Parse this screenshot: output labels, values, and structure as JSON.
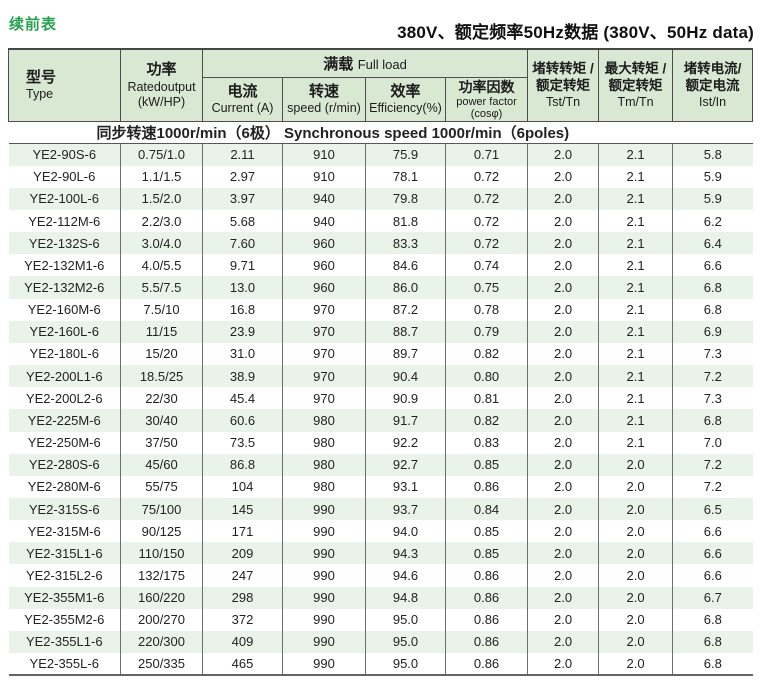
{
  "page": {
    "continued_label": "续前表",
    "title_right": "380V、额定频率50Hz数据 (380V、50Hz data)"
  },
  "table": {
    "section_header": "同步转速1000r/min（6极） Synchronous speed 1000r/min（6poles)",
    "columns": {
      "type": {
        "zh": "型号",
        "en": "Type"
      },
      "power": {
        "zh": "功率",
        "en": "Ratedoutput",
        "unit": "(kW/HP)"
      },
      "full_load": {
        "zh": "满载",
        "en": "Full load"
      },
      "current": {
        "zh": "电流",
        "en": "Current (A)"
      },
      "speed": {
        "zh": "转速",
        "en": "speed (r/min)"
      },
      "efficiency": {
        "zh": "效率",
        "en": "Efficiency(%)"
      },
      "power_factor": {
        "zh": "功率因数",
        "en": "power factor",
        "unit": "(cosφ)"
      },
      "tst_tn": {
        "zh1": "堵转转矩 /",
        "zh2": "额定转矩",
        "en": "Tst/Tn"
      },
      "tm_tn": {
        "zh1": "最大转矩 /",
        "zh2": "额定转矩",
        "en": "Tm/Tn"
      },
      "ist_in": {
        "zh1": "堵转电流/",
        "zh2": "额定电流",
        "en": "Ist/In"
      }
    },
    "column_keys": [
      "model",
      "rated-output",
      "current",
      "speed",
      "efficiency",
      "power-factor",
      "tst-tn",
      "tm-tn",
      "ist-in"
    ],
    "rows": [
      [
        "YE2-90S-6",
        "0.75/1.0",
        "2.11",
        "910",
        "75.9",
        "0.71",
        "2.0",
        "2.1",
        "5.8"
      ],
      [
        "YE2-90L-6",
        "1.1/1.5",
        "2.97",
        "910",
        "78.1",
        "0.72",
        "2.0",
        "2.1",
        "5.9"
      ],
      [
        "YE2-100L-6",
        "1.5/2.0",
        "3.97",
        "940",
        "79.8",
        "0.72",
        "2.0",
        "2.1",
        "5.9"
      ],
      [
        "YE2-112M-6",
        "2.2/3.0",
        "5.68",
        "940",
        "81.8",
        "0.72",
        "2.0",
        "2.1",
        "6.2"
      ],
      [
        "YE2-132S-6",
        "3.0/4.0",
        "7.60",
        "960",
        "83.3",
        "0.72",
        "2.0",
        "2.1",
        "6.4"
      ],
      [
        "YE2-132M1-6",
        "4.0/5.5",
        "9.71",
        "960",
        "84.6",
        "0.74",
        "2.0",
        "2.1",
        "6.6"
      ],
      [
        "YE2-132M2-6",
        "5.5/7.5",
        "13.0",
        "960",
        "86.0",
        "0.75",
        "2.0",
        "2.1",
        "6.8"
      ],
      [
        "YE2-160M-6",
        "7.5/10",
        "16.8",
        "970",
        "87.2",
        "0.78",
        "2.0",
        "2.1",
        "6.8"
      ],
      [
        "YE2-160L-6",
        "11/15",
        "23.9",
        "970",
        "88.7",
        "0.79",
        "2.0",
        "2.1",
        "6.9"
      ],
      [
        "YE2-180L-6",
        "15/20",
        "31.0",
        "970",
        "89.7",
        "0.82",
        "2.0",
        "2.1",
        "7.3"
      ],
      [
        "YE2-200L1-6",
        "18.5/25",
        "38.9",
        "970",
        "90.4",
        "0.80",
        "2.0",
        "2.1",
        "7.2"
      ],
      [
        "YE2-200L2-6",
        "22/30",
        "45.4",
        "970",
        "90.9",
        "0.81",
        "2.0",
        "2.1",
        "7.3"
      ],
      [
        "YE2-225M-6",
        "30/40",
        "60.6",
        "980",
        "91.7",
        "0.82",
        "2.0",
        "2.1",
        "6.8"
      ],
      [
        "YE2-250M-6",
        "37/50",
        "73.5",
        "980",
        "92.2",
        "0.83",
        "2.0",
        "2.1",
        "7.0"
      ],
      [
        "YE2-280S-6",
        "45/60",
        "86.8",
        "980",
        "92.7",
        "0.85",
        "2.0",
        "2.0",
        "7.2"
      ],
      [
        "YE2-280M-6",
        "55/75",
        "104",
        "980",
        "93.1",
        "0.86",
        "2.0",
        "2.0",
        "7.2"
      ],
      [
        "YE2-315S-6",
        "75/100",
        "145",
        "990",
        "93.7",
        "0.84",
        "2.0",
        "2.0",
        "6.5"
      ],
      [
        "YE2-315M-6",
        "90/125",
        "171",
        "990",
        "94.0",
        "0.85",
        "2.0",
        "2.0",
        "6.6"
      ],
      [
        "YE2-315L1-6",
        "110/150",
        "209",
        "990",
        "94.3",
        "0.85",
        "2.0",
        "2.0",
        "6.6"
      ],
      [
        "YE2-315L2-6",
        "132/175",
        "247",
        "990",
        "94.6",
        "0.86",
        "2.0",
        "2.0",
        "6.6"
      ],
      [
        "YE2-355M1-6",
        "160/220",
        "298",
        "990",
        "94.8",
        "0.86",
        "2.0",
        "2.0",
        "6.7"
      ],
      [
        "YE2-355M2-6",
        "200/270",
        "372",
        "990",
        "95.0",
        "0.86",
        "2.0",
        "2.0",
        "6.8"
      ],
      [
        "YE2-355L1-6",
        "220/300",
        "409",
        "990",
        "95.0",
        "0.86",
        "2.0",
        "2.0",
        "6.8"
      ],
      [
        "YE2-355L-6",
        "250/335",
        "465",
        "990",
        "95.0",
        "0.86",
        "2.0",
        "2.0",
        "6.8"
      ]
    ]
  },
  "colors": {
    "accent_green_text": "#27a050",
    "header_bg": "#d9e8d2",
    "stripe_bg": "#eaf3ea",
    "border_dark": "#4e4e4e"
  }
}
